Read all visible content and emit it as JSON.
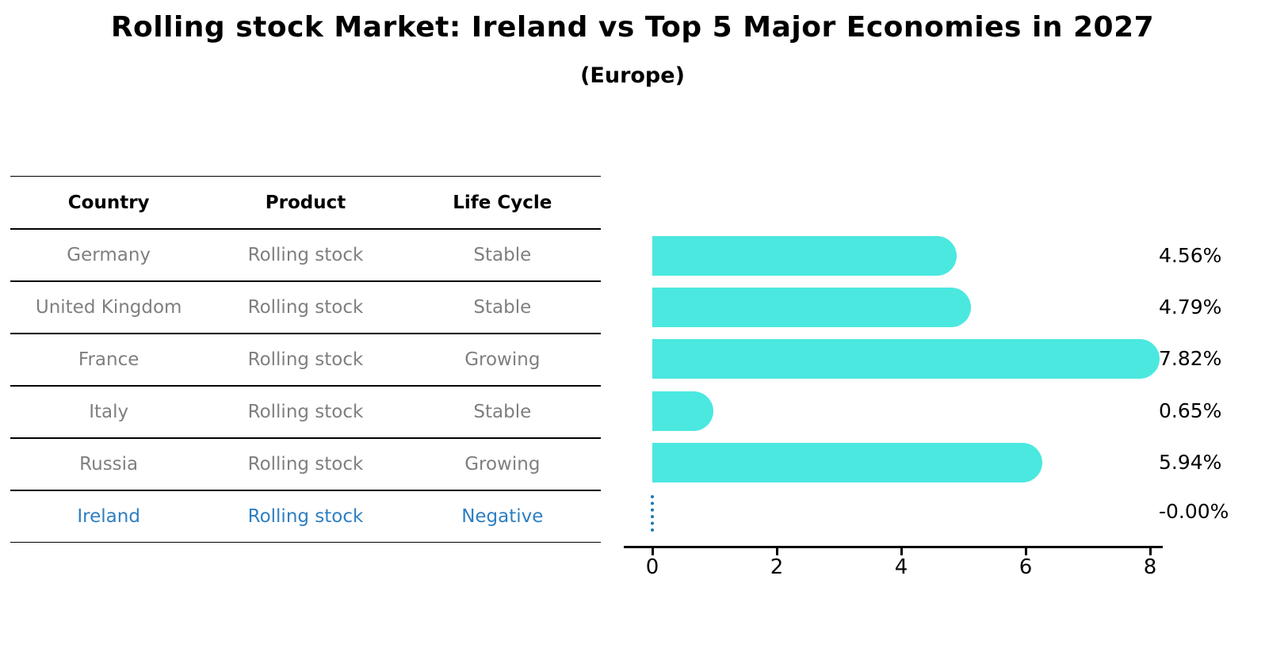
{
  "header": {
    "title": "Rolling stock Market: Ireland vs Top 5 Major Economies in 2027",
    "subtitle": "(Europe)"
  },
  "table": {
    "columns": {
      "country": "Country",
      "product": "Product",
      "life_cycle": "Life Cycle"
    },
    "rows": [
      {
        "country": "Germany",
        "product": "Rolling stock",
        "life_cycle": "Stable",
        "highlight": false
      },
      {
        "country": "United Kingdom",
        "product": "Rolling stock",
        "life_cycle": "Stable",
        "highlight": false
      },
      {
        "country": "France",
        "product": "Rolling stock",
        "life_cycle": "Growing",
        "highlight": false
      },
      {
        "country": "Italy",
        "product": "Rolling stock",
        "life_cycle": "Stable",
        "highlight": false
      },
      {
        "country": "Russia",
        "product": "Rolling stock",
        "life_cycle": "Growing",
        "highlight": false
      },
      {
        "country": "Ireland",
        "product": "Rolling stock",
        "life_cycle": "Negative",
        "highlight": true
      }
    ]
  },
  "chart_data": {
    "type": "bar",
    "orientation": "horizontal",
    "title": "Rolling stock Market: Ireland vs Top 5 Major Economies in 2027",
    "subtitle": "(Europe)",
    "categories": [
      "Germany",
      "United Kingdom",
      "France",
      "Italy",
      "Russia",
      "Ireland"
    ],
    "values": [
      4.56,
      4.79,
      7.82,
      0.65,
      5.94,
      -0.0
    ],
    "bar_labels": [
      "4.56%",
      "4.79%",
      "7.82%",
      "0.65%",
      "5.94%",
      "-0.00%"
    ],
    "xtick_labels": [
      "0",
      "2",
      "4",
      "6",
      "8"
    ],
    "xlim": [
      0,
      8
    ],
    "grid": false,
    "legend": "none",
    "bar_color": "#4BE8E0",
    "zero_marker": "dotted-vertical-line",
    "zero_marker_color": "#1f77b4",
    "highlight_category": "Ireland",
    "highlight_text_color": "#2E7FC2",
    "table_text_color": "#7f7f7f"
  }
}
